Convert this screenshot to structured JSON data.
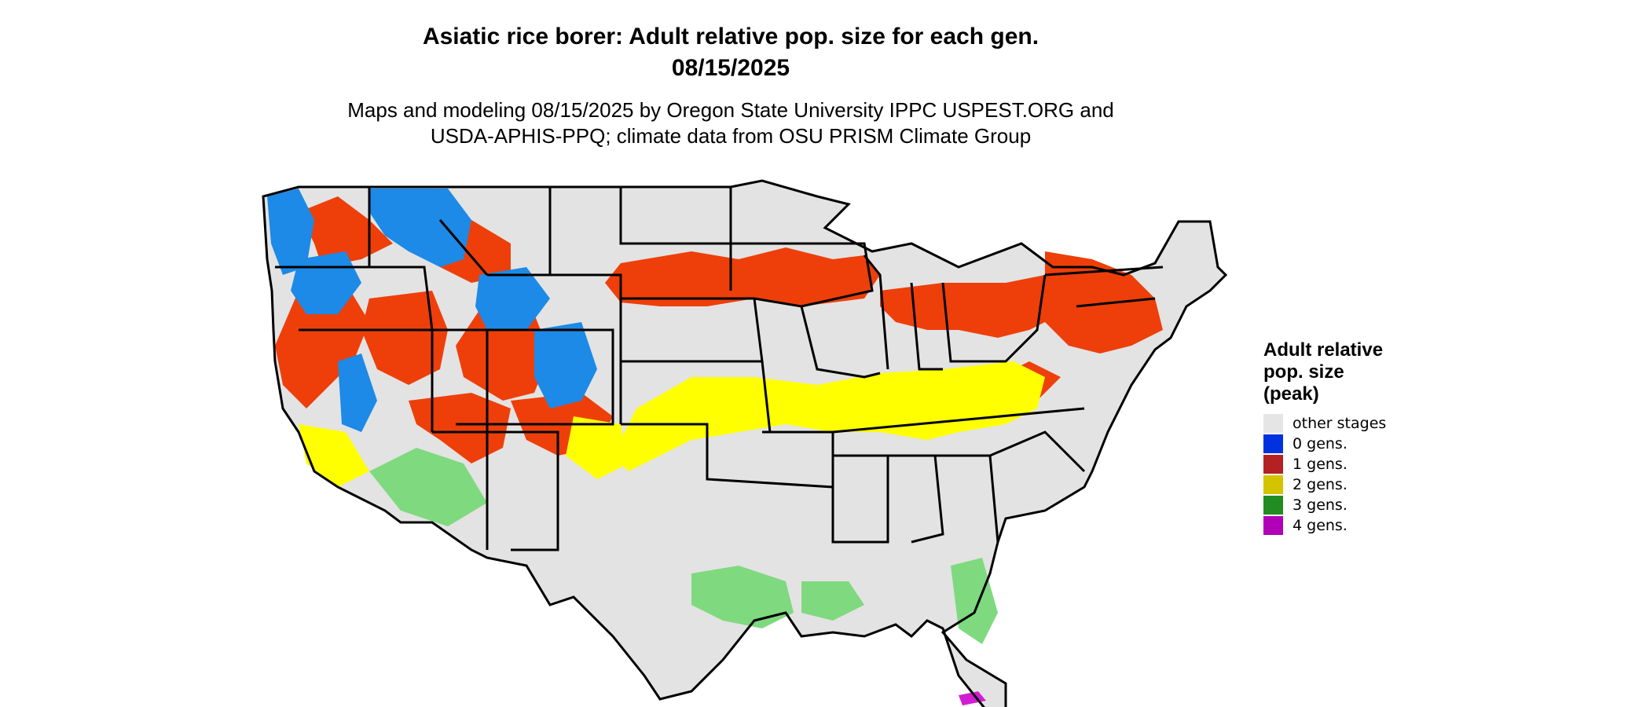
{
  "header": {
    "title_line1": "Asiatic rice borer: Adult relative pop. size for each gen.",
    "title_line2": "08/15/2025",
    "subtitle_line1": "Maps and modeling 08/15/2025 by Oregon State University IPPC USPEST.ORG and",
    "subtitle_line2": "USDA-APHIS-PPQ; climate data from OSU PRISM Climate Group"
  },
  "legend": {
    "title_line1": "Adult relative",
    "title_line2": "pop. size",
    "title_line3": "(peak)",
    "items": [
      {
        "label": "other stages",
        "color": "#e5e5e5"
      },
      {
        "label": "0 gens.",
        "color": "#0033dd"
      },
      {
        "label": "1 gens.",
        "color": "#b22222"
      },
      {
        "label": "2 gens.",
        "color": "#d4c400"
      },
      {
        "label": "3 gens.",
        "color": "#228b22"
      },
      {
        "label": "4 gens.",
        "color": "#b000b8"
      }
    ]
  },
  "map_colors": {
    "land": "#e3e3e3",
    "one_gen_fill": "#ee3f0a",
    "zero_gen_fill": "#1c8ae6",
    "two_gen_fill": "#ffff00",
    "three_gen_fill": "#7fd97f",
    "four_gen_fill": "#d21ed2",
    "border": "#000000"
  }
}
